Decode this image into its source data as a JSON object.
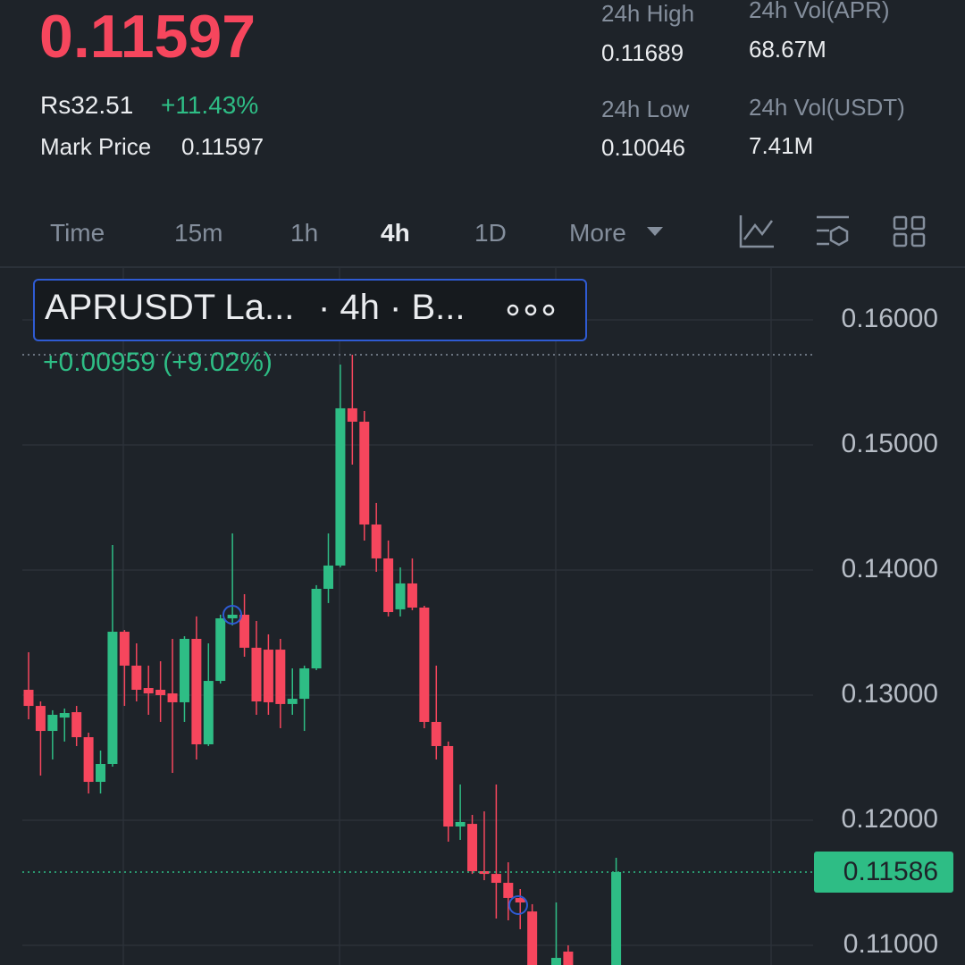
{
  "header": {
    "price": "0.11597",
    "fiat": "Rs32.51",
    "change": "+11.43%",
    "mark_label": "Mark Price",
    "mark_value": "0.11597",
    "stats": [
      {
        "label": "24h High",
        "value": "0.11689"
      },
      {
        "label": "24h Vol(APR)",
        "value": "68.67M"
      },
      {
        "label": "24h Low",
        "value": "0.10046"
      },
      {
        "label": "24h Vol(USDT)",
        "value": "7.41M"
      }
    ]
  },
  "tabs": [
    "Time",
    "15m",
    "1h",
    "4h",
    "1D",
    "More"
  ],
  "legend": {
    "symbol": "APRUSDT La...",
    "interval": "· 4h · B...",
    "change": "+0.00959 (+9.02%)"
  },
  "chart_data": {
    "type": "candlestick",
    "up_color": "#2ebd85",
    "down_color": "#f6465d",
    "ylim": [
      0.10843,
      0.16414
    ],
    "yticks": [
      {
        "value": 0.11,
        "label": "0.11000"
      },
      {
        "value": 0.12,
        "label": "0.12000"
      },
      {
        "value": 0.13,
        "label": "0.13000"
      },
      {
        "value": 0.14,
        "label": "0.14000"
      },
      {
        "value": 0.15,
        "label": "0.15000"
      },
      {
        "value": 0.16,
        "label": "0.16000"
      }
    ],
    "grid": true,
    "last_price": 0.11586,
    "high_line": 0.15721,
    "open": [
      0.13043,
      0.12914,
      0.12714,
      0.12821,
      0.12864,
      0.12664,
      0.12307,
      0.1245,
      0.13507,
      0.13236,
      0.13057,
      0.13043,
      0.13014,
      0.12943,
      0.1345,
      0.12607,
      0.13114,
      0.13614,
      0.13643,
      0.13379,
      0.13364,
      0.13364,
      0.12929,
      0.12971,
      0.13214,
      0.1385,
      0.14036,
      0.15293,
      0.15186,
      0.14364,
      0.14093,
      0.13686,
      0.13893,
      0.137,
      0.12786,
      0.12593,
      0.1195,
      0.11971,
      0.11593,
      0.11571,
      0.115,
      0.11379,
      0.11271,
      null,
      0.1082,
      0.1095,
      null,
      null,
      null,
      0.108
    ],
    "high": [
      0.13343,
      0.1295,
      0.12879,
      0.12893,
      0.12914,
      0.127,
      0.12557,
      0.142,
      0.13521,
      0.13414,
      0.13236,
      0.13271,
      0.1345,
      0.13471,
      0.13629,
      0.13414,
      0.13643,
      0.14293,
      0.13807,
      0.13593,
      0.13486,
      0.1345,
      0.13214,
      0.13236,
      0.13879,
      0.14293,
      0.15643,
      0.15721,
      0.15271,
      0.14536,
      0.14236,
      0.14021,
      0.14093,
      0.13714,
      0.13236,
      0.12629,
      0.12286,
      0.12043,
      0.12071,
      0.12286,
      0.11664,
      0.1145,
      0.11329,
      null,
      0.11343,
      0.11,
      null,
      null,
      null,
      0.117
    ],
    "low": [
      0.12807,
      0.12357,
      0.12486,
      0.12629,
      0.12593,
      0.12214,
      0.12214,
      0.12429,
      0.12914,
      0.1295,
      0.12843,
      0.12786,
      0.12379,
      0.12786,
      0.12486,
      0.12593,
      0.13093,
      0.13557,
      0.13307,
      0.12843,
      0.12843,
      0.12736,
      0.12843,
      0.12714,
      0.132,
      0.13736,
      0.14021,
      0.14843,
      0.14236,
      0.13986,
      0.13629,
      0.13629,
      0.13679,
      0.12736,
      0.12486,
      0.11829,
      0.11843,
      0.11571,
      0.11521,
      0.11214,
      0.112,
      0.11129,
      0.1075,
      null,
      0.1078,
      0.107,
      null,
      null,
      null,
      0.1075
    ],
    "close": [
      0.12914,
      0.12714,
      0.12843,
      0.12857,
      0.12664,
      0.12307,
      0.1245,
      0.13507,
      0.13236,
      0.13043,
      0.13014,
      0.13,
      0.12943,
      0.1345,
      0.12607,
      0.13114,
      0.13614,
      0.13643,
      0.13379,
      0.1295,
      0.12943,
      0.12929,
      0.12971,
      0.13214,
      0.1385,
      0.14036,
      0.15293,
      0.15186,
      0.14364,
      0.14093,
      0.13664,
      0.13893,
      0.137,
      0.12786,
      0.12593,
      0.1195,
      0.11986,
      0.11593,
      0.11571,
      0.115,
      0.11379,
      0.11343,
      0.108,
      null,
      0.109,
      0.108,
      null,
      null,
      null,
      0.11586
    ]
  }
}
